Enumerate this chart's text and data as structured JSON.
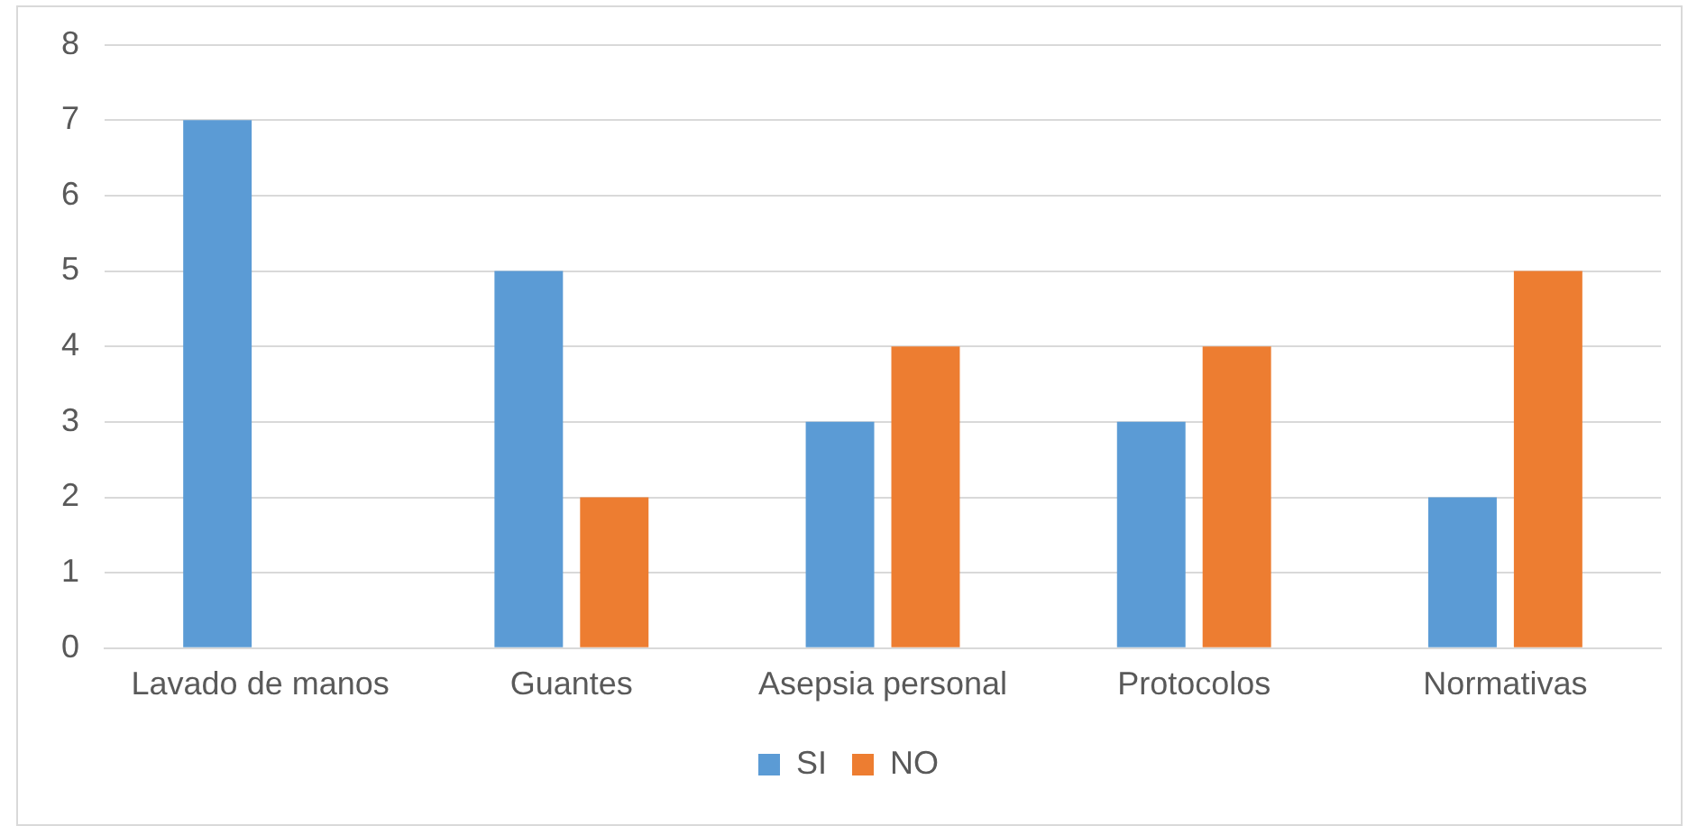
{
  "chart_data": {
    "type": "bar",
    "categories": [
      "Lavado de manos",
      "Guantes",
      "Asepsia personal",
      "Protocolos",
      "Normativas"
    ],
    "series": [
      {
        "name": "SI",
        "color": "#5b9bd5",
        "values": [
          7,
          5,
          3,
          3,
          2
        ]
      },
      {
        "name": "NO",
        "color": "#ed7d31",
        "values": [
          0,
          2,
          4,
          4,
          5
        ]
      }
    ],
    "ylim": [
      0,
      8
    ],
    "yticks": [
      0,
      1,
      2,
      3,
      4,
      5,
      6,
      7,
      8
    ],
    "grid": "y",
    "legend": "bottom"
  }
}
